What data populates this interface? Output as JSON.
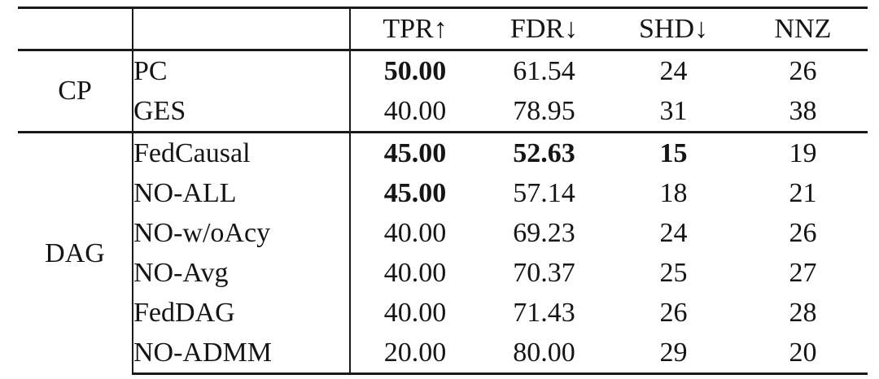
{
  "table": {
    "headers": {
      "tpr": "TPR↑",
      "fdr": "FDR↓",
      "shd": "SHD↓",
      "nnz": "NNZ"
    },
    "groups": [
      {
        "label": "CP",
        "rows": [
          {
            "method": "PC",
            "tpr": "50.00",
            "fdr": "61.54",
            "shd": "24",
            "nnz": "26",
            "bold": [
              "tpr"
            ]
          },
          {
            "method": "GES",
            "tpr": "40.00",
            "fdr": "78.95",
            "shd": "31",
            "nnz": "38",
            "bold": []
          }
        ]
      },
      {
        "label": "DAG",
        "rows": [
          {
            "method": "FedCausal",
            "tpr": "45.00",
            "fdr": "52.63",
            "shd": "15",
            "nnz": "19",
            "bold": [
              "tpr",
              "fdr",
              "shd"
            ]
          },
          {
            "method": "NO-ALL",
            "tpr": "45.00",
            "fdr": "57.14",
            "shd": "18",
            "nnz": "21",
            "bold": [
              "tpr"
            ]
          },
          {
            "method": "NO-w/oAcy",
            "tpr": "40.00",
            "fdr": "69.23",
            "shd": "24",
            "nnz": "26",
            "bold": []
          },
          {
            "method": "NO-Avg",
            "tpr": "40.00",
            "fdr": "70.37",
            "shd": "25",
            "nnz": "27",
            "bold": []
          },
          {
            "method": "FedDAG",
            "tpr": "40.00",
            "fdr": "71.43",
            "shd": "26",
            "nnz": "28",
            "bold": []
          },
          {
            "method": "NO-ADMM",
            "tpr": "20.00",
            "fdr": "80.00",
            "shd": "29",
            "nnz": "20",
            "bold": []
          }
        ]
      }
    ],
    "colors": {
      "rule": "#1a1a1a",
      "text": "#151515",
      "background": "#ffffff"
    }
  }
}
